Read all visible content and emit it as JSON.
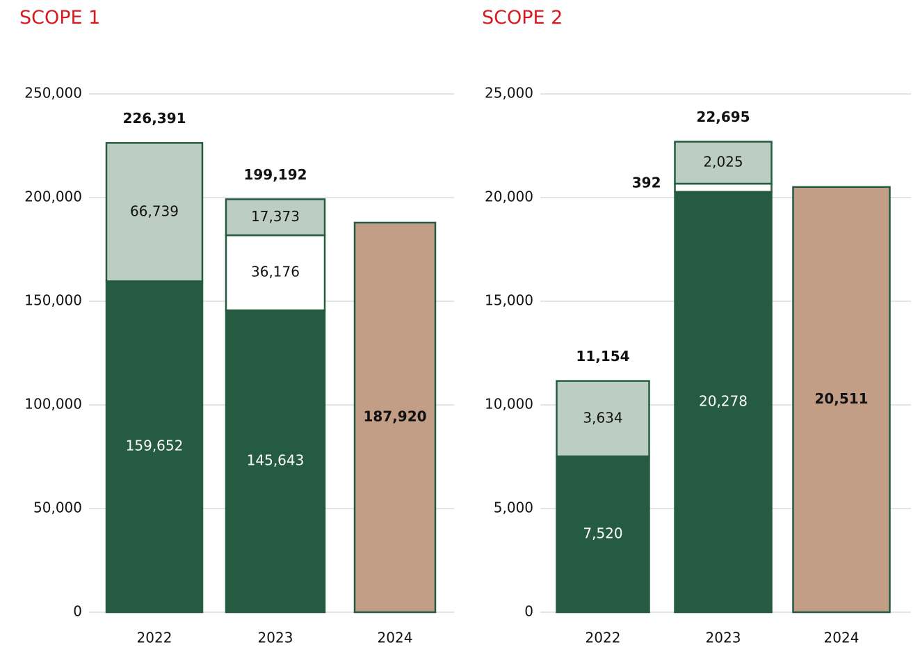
{
  "chart_data": [
    {
      "type": "stacked_bar",
      "title": "SCOPE 1",
      "categories": [
        "2022",
        "2023",
        "2024"
      ],
      "series": [
        {
          "color": "#245b41",
          "values": [
            159652,
            145643,
            null
          ],
          "value_labels": [
            "159,652",
            "145,643",
            null
          ]
        },
        {
          "color": "#ffffff",
          "values": [
            null,
            36176,
            null
          ],
          "value_labels": [
            null,
            "36,176",
            null
          ]
        },
        {
          "color": "#bccdc4",
          "values": [
            66739,
            17373,
            null
          ],
          "value_labels": [
            "66,739",
            "17,373",
            null
          ]
        },
        {
          "color": "#c29e87",
          "values": [
            null,
            null,
            187920
          ],
          "value_labels": [
            null,
            null,
            "187,920"
          ]
        }
      ],
      "totals": [
        226391,
        199192,
        null
      ],
      "total_labels": [
        "226,391",
        "199,192",
        null
      ],
      "ylim": [
        0,
        250000
      ],
      "yticks": [
        0,
        {
          "value": 50000,
          "label": "50,000"
        },
        {
          "value": 100000,
          "label": "100,000"
        },
        {
          "value": 150000,
          "label": "150,000"
        },
        {
          "value": 200000,
          "label": "200,000"
        },
        {
          "value": 250000,
          "label": "250,000"
        }
      ],
      "grid": true
    },
    {
      "type": "stacked_bar",
      "title": "SCOPE 2",
      "categories": [
        "2022",
        "2023",
        "2024"
      ],
      "series": [
        {
          "color": "#245b41",
          "values": [
            7520,
            20278,
            null
          ],
          "value_labels": [
            "7,520",
            "20,278",
            null
          ]
        },
        {
          "color": "#ffffff",
          "values": [
            null,
            392,
            null
          ]
        },
        {
          "color": "#bccdc4",
          "values": [
            3634,
            2025,
            null
          ],
          "value_labels": [
            "3,634",
            "2,025",
            null
          ]
        },
        {
          "color": "#c29e87",
          "values": [
            null,
            null,
            20511
          ],
          "value_labels": [
            null,
            null,
            "20,511"
          ]
        }
      ],
      "totals": [
        11154,
        22695,
        null
      ],
      "total_labels": [
        "11,154",
        "22,695",
        null
      ],
      "ylim": [
        0,
        25000
      ],
      "yticks": [
        0,
        {
          "value": 5000,
          "label": "5,000"
        },
        {
          "value": 10000,
          "label": "10,000"
        },
        {
          "value": 15000,
          "label": "15,000"
        },
        {
          "value": 20000,
          "label": "20,000"
        },
        {
          "value": 25000,
          "label": "25,000"
        }
      ],
      "grid": true
    }
  ]
}
